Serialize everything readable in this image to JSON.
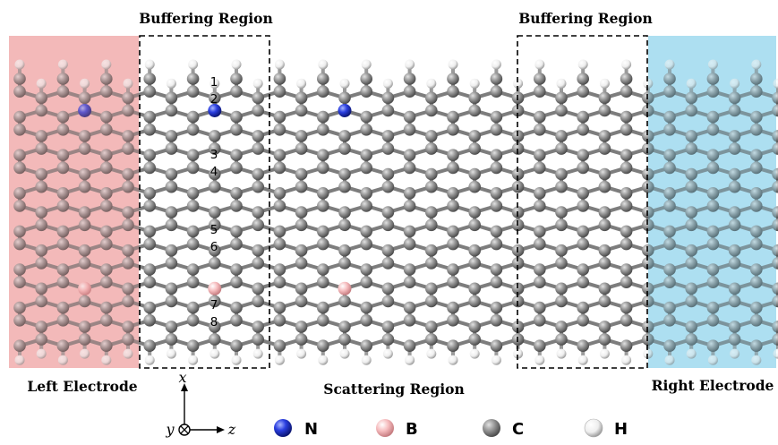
{
  "regions": {
    "buffer_left": "Buffering Region",
    "buffer_right": "Buffering Region",
    "left_electrode": "Left Electrode",
    "scattering": "Scattering Region",
    "right_electrode": "Right Electrode"
  },
  "site_numbers": [
    "1",
    "2",
    "3",
    "4",
    "5",
    "6",
    "7",
    "8"
  ],
  "axes": {
    "x": "x",
    "y": "y",
    "z": "z",
    "y_symbol": "⊗"
  },
  "legend": [
    {
      "label": "N",
      "color": "#2b3fe0",
      "icon": "blue-sphere"
    },
    {
      "label": "B",
      "color": "#f4b6b8",
      "icon": "pink-sphere"
    },
    {
      "label": "C",
      "color": "#8a8a8a",
      "icon": "grey-sphere"
    },
    {
      "label": "H",
      "color": "#f2f2f2",
      "icon": "white-sphere"
    }
  ],
  "colors": {
    "left_electrode_bg": "#f7c5c5",
    "right_electrode_bg": "#c3e8f6",
    "carbon": "#8a8a8a",
    "hydrogen": "#f2f2f2",
    "nitrogen": "#2b3fe0",
    "boron": "#f4b6b8"
  }
}
